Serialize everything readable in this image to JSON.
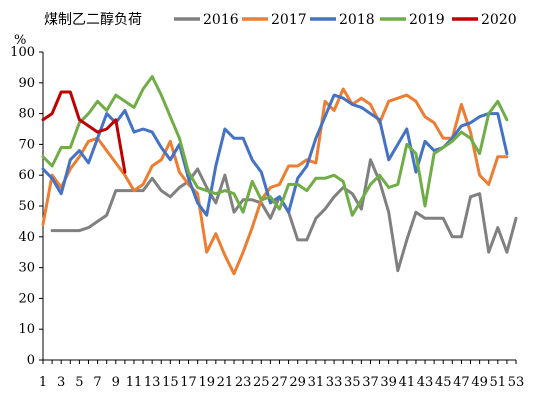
{
  "chart_data": {
    "type": "line",
    "title": "煤制乙二醇负荷",
    "ylabel": "%",
    "xlabel": "",
    "ylim": [
      0,
      100
    ],
    "yticks": [
      0,
      10,
      20,
      30,
      40,
      50,
      60,
      70,
      80,
      90,
      100
    ],
    "xlim": [
      1,
      53
    ],
    "xticks": [
      1,
      3,
      5,
      7,
      9,
      11,
      13,
      15,
      17,
      19,
      21,
      23,
      25,
      27,
      29,
      31,
      33,
      35,
      37,
      39,
      41,
      43,
      45,
      47,
      49,
      51,
      53
    ],
    "grid": false,
    "legend_position": "top",
    "series": [
      {
        "name": "2016",
        "color": "#808080",
        "x": [
          2,
          3,
          4,
          5,
          6,
          7,
          8,
          9,
          10,
          11,
          12,
          13,
          14,
          15,
          16,
          17,
          18,
          19,
          20,
          21,
          22,
          23,
          24,
          25,
          26,
          27,
          28,
          29,
          30,
          31,
          32,
          33,
          34,
          35,
          36,
          37,
          38,
          39,
          40,
          41,
          42,
          43,
          44,
          45,
          46,
          47,
          48,
          49,
          50,
          51,
          52,
          53
        ],
        "values": [
          42,
          42,
          42,
          42,
          43,
          45,
          47,
          55,
          55,
          55,
          55,
          59,
          55,
          53,
          56,
          58,
          62,
          56,
          51,
          60,
          48,
          52,
          52,
          51,
          46,
          53,
          48,
          39,
          39,
          46,
          49,
          53,
          56,
          54,
          49,
          65,
          58,
          48,
          29,
          39,
          48,
          46,
          46,
          46,
          40,
          40,
          53,
          54,
          35,
          43,
          35,
          46
        ]
      },
      {
        "name": "2017",
        "color": "#ED7D31",
        "x": [
          1,
          2,
          3,
          4,
          5,
          6,
          7,
          8,
          9,
          10,
          11,
          12,
          13,
          14,
          15,
          16,
          17,
          18,
          19,
          20,
          21,
          22,
          23,
          24,
          25,
          26,
          27,
          28,
          29,
          30,
          31,
          32,
          33,
          34,
          35,
          36,
          37,
          38,
          39,
          40,
          41,
          42,
          43,
          44,
          45,
          46,
          47,
          48,
          49,
          50,
          51,
          52
        ],
        "values": [
          44,
          60,
          56,
          62,
          66,
          71,
          72,
          68,
          64,
          60,
          55,
          57,
          63,
          65,
          71,
          61,
          57,
          54,
          35,
          41,
          34,
          28,
          35,
          43,
          52,
          56,
          57,
          63,
          63,
          65,
          64,
          84,
          81,
          88,
          83,
          85,
          83,
          77,
          84,
          85,
          86,
          84,
          79,
          77,
          72,
          72,
          83,
          74,
          60,
          57,
          66,
          66
        ]
      },
      {
        "name": "2018",
        "color": "#4472C4",
        "x": [
          1,
          2,
          3,
          4,
          5,
          6,
          7,
          8,
          9,
          10,
          11,
          12,
          13,
          14,
          15,
          16,
          17,
          18,
          19,
          20,
          21,
          22,
          23,
          24,
          25,
          26,
          27,
          28,
          29,
          30,
          31,
          32,
          33,
          34,
          35,
          36,
          37,
          38,
          39,
          40,
          41,
          42,
          43,
          44,
          45,
          46,
          47,
          48,
          49,
          50,
          51,
          52
        ],
        "values": [
          62,
          59,
          54,
          65,
          68,
          64,
          72,
          80,
          77,
          81,
          74,
          75,
          74,
          69,
          65,
          70,
          59,
          51,
          47,
          63,
          75,
          72,
          72,
          65,
          61,
          51,
          53,
          48,
          59,
          63,
          72,
          79,
          86,
          85,
          83,
          82,
          80,
          78,
          65,
          70,
          75,
          61,
          71,
          68,
          69,
          72,
          76,
          77,
          79,
          80,
          80,
          67
        ]
      },
      {
        "name": "2019",
        "color": "#70AD47",
        "x": [
          1,
          2,
          3,
          4,
          5,
          6,
          7,
          8,
          9,
          10,
          11,
          12,
          13,
          14,
          15,
          16,
          17,
          18,
          19,
          20,
          21,
          22,
          23,
          24,
          25,
          26,
          27,
          28,
          29,
          30,
          31,
          32,
          33,
          34,
          35,
          36,
          37,
          38,
          39,
          40,
          41,
          42,
          43,
          44,
          45,
          46,
          47,
          48,
          49,
          50,
          51,
          52
        ],
        "values": [
          66,
          63,
          69,
          69,
          77,
          80,
          84,
          81,
          86,
          84,
          82,
          88,
          92,
          86,
          79,
          72,
          61,
          56,
          55,
          54,
          55,
          54,
          48,
          58,
          52,
          53,
          49,
          57,
          57,
          55,
          59,
          59,
          60,
          58,
          47,
          52,
          57,
          60,
          56,
          57,
          70,
          67,
          50,
          67,
          69,
          71,
          74,
          72,
          67,
          80,
          84,
          78
        ]
      },
      {
        "name": "2020",
        "color": "#C00000",
        "x": [
          1,
          2,
          3,
          4,
          5,
          6,
          7,
          8,
          9,
          10
        ],
        "values": [
          78,
          80,
          87,
          87,
          78,
          76,
          74,
          75,
          78,
          61
        ]
      }
    ]
  }
}
